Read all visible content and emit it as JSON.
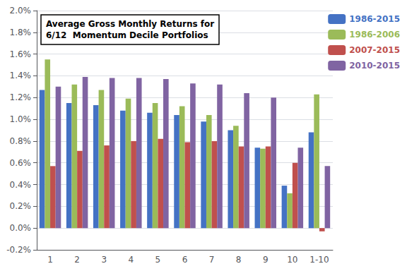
{
  "chart_data": {
    "type": "bar",
    "annotation": "Average Gross Monthly Returns for\n6/12  Momentum Decile Portfolios",
    "categories": [
      "1",
      "2",
      "3",
      "4",
      "5",
      "6",
      "7",
      "8",
      "9",
      "10",
      "1-10"
    ],
    "series": [
      {
        "name": "1986-2015",
        "color": "#4472C4",
        "values": [
          0.0127,
          0.0115,
          0.0113,
          0.0108,
          0.0106,
          0.0104,
          0.0098,
          0.009,
          0.0074,
          0.0039,
          0.0088
        ]
      },
      {
        "name": "1986-2006",
        "color": "#9BBB59",
        "values": [
          0.0155,
          0.0132,
          0.0127,
          0.0119,
          0.0115,
          0.0112,
          0.0104,
          0.0094,
          0.0073,
          0.0032,
          0.0123
        ]
      },
      {
        "name": "2007-2015",
        "color": "#C0504D",
        "values": [
          0.0057,
          0.0071,
          0.0076,
          0.008,
          0.0082,
          0.0079,
          0.008,
          0.0075,
          0.0075,
          0.006,
          -0.0003
        ]
      },
      {
        "name": "2010-2015",
        "color": "#8064A2",
        "values": [
          0.013,
          0.0139,
          0.0138,
          0.0138,
          0.0137,
          0.0133,
          0.0132,
          0.0124,
          0.012,
          0.0074,
          0.0057
        ]
      }
    ],
    "ylim": [
      -0.002,
      0.02
    ],
    "yticks": [
      {
        "value": -0.002,
        "label": "-0.2%"
      },
      {
        "value": 0,
        "label": "0.0%"
      },
      {
        "value": 0.002,
        "label": "0.2%"
      },
      {
        "value": 0.004,
        "label": "0.4%"
      },
      {
        "value": 0.006,
        "label": "0.6%"
      },
      {
        "value": 0.008,
        "label": "0.8%"
      },
      {
        "value": 0.01,
        "label": "1.0%"
      },
      {
        "value": 0.012,
        "label": "1.2%"
      },
      {
        "value": 0.014,
        "label": "1.4%"
      },
      {
        "value": 0.016,
        "label": "1.6%"
      },
      {
        "value": 0.018,
        "label": "1.8%"
      },
      {
        "value": 0.02,
        "label": "2.0%"
      }
    ],
    "grid": true,
    "legend": "upper right"
  }
}
